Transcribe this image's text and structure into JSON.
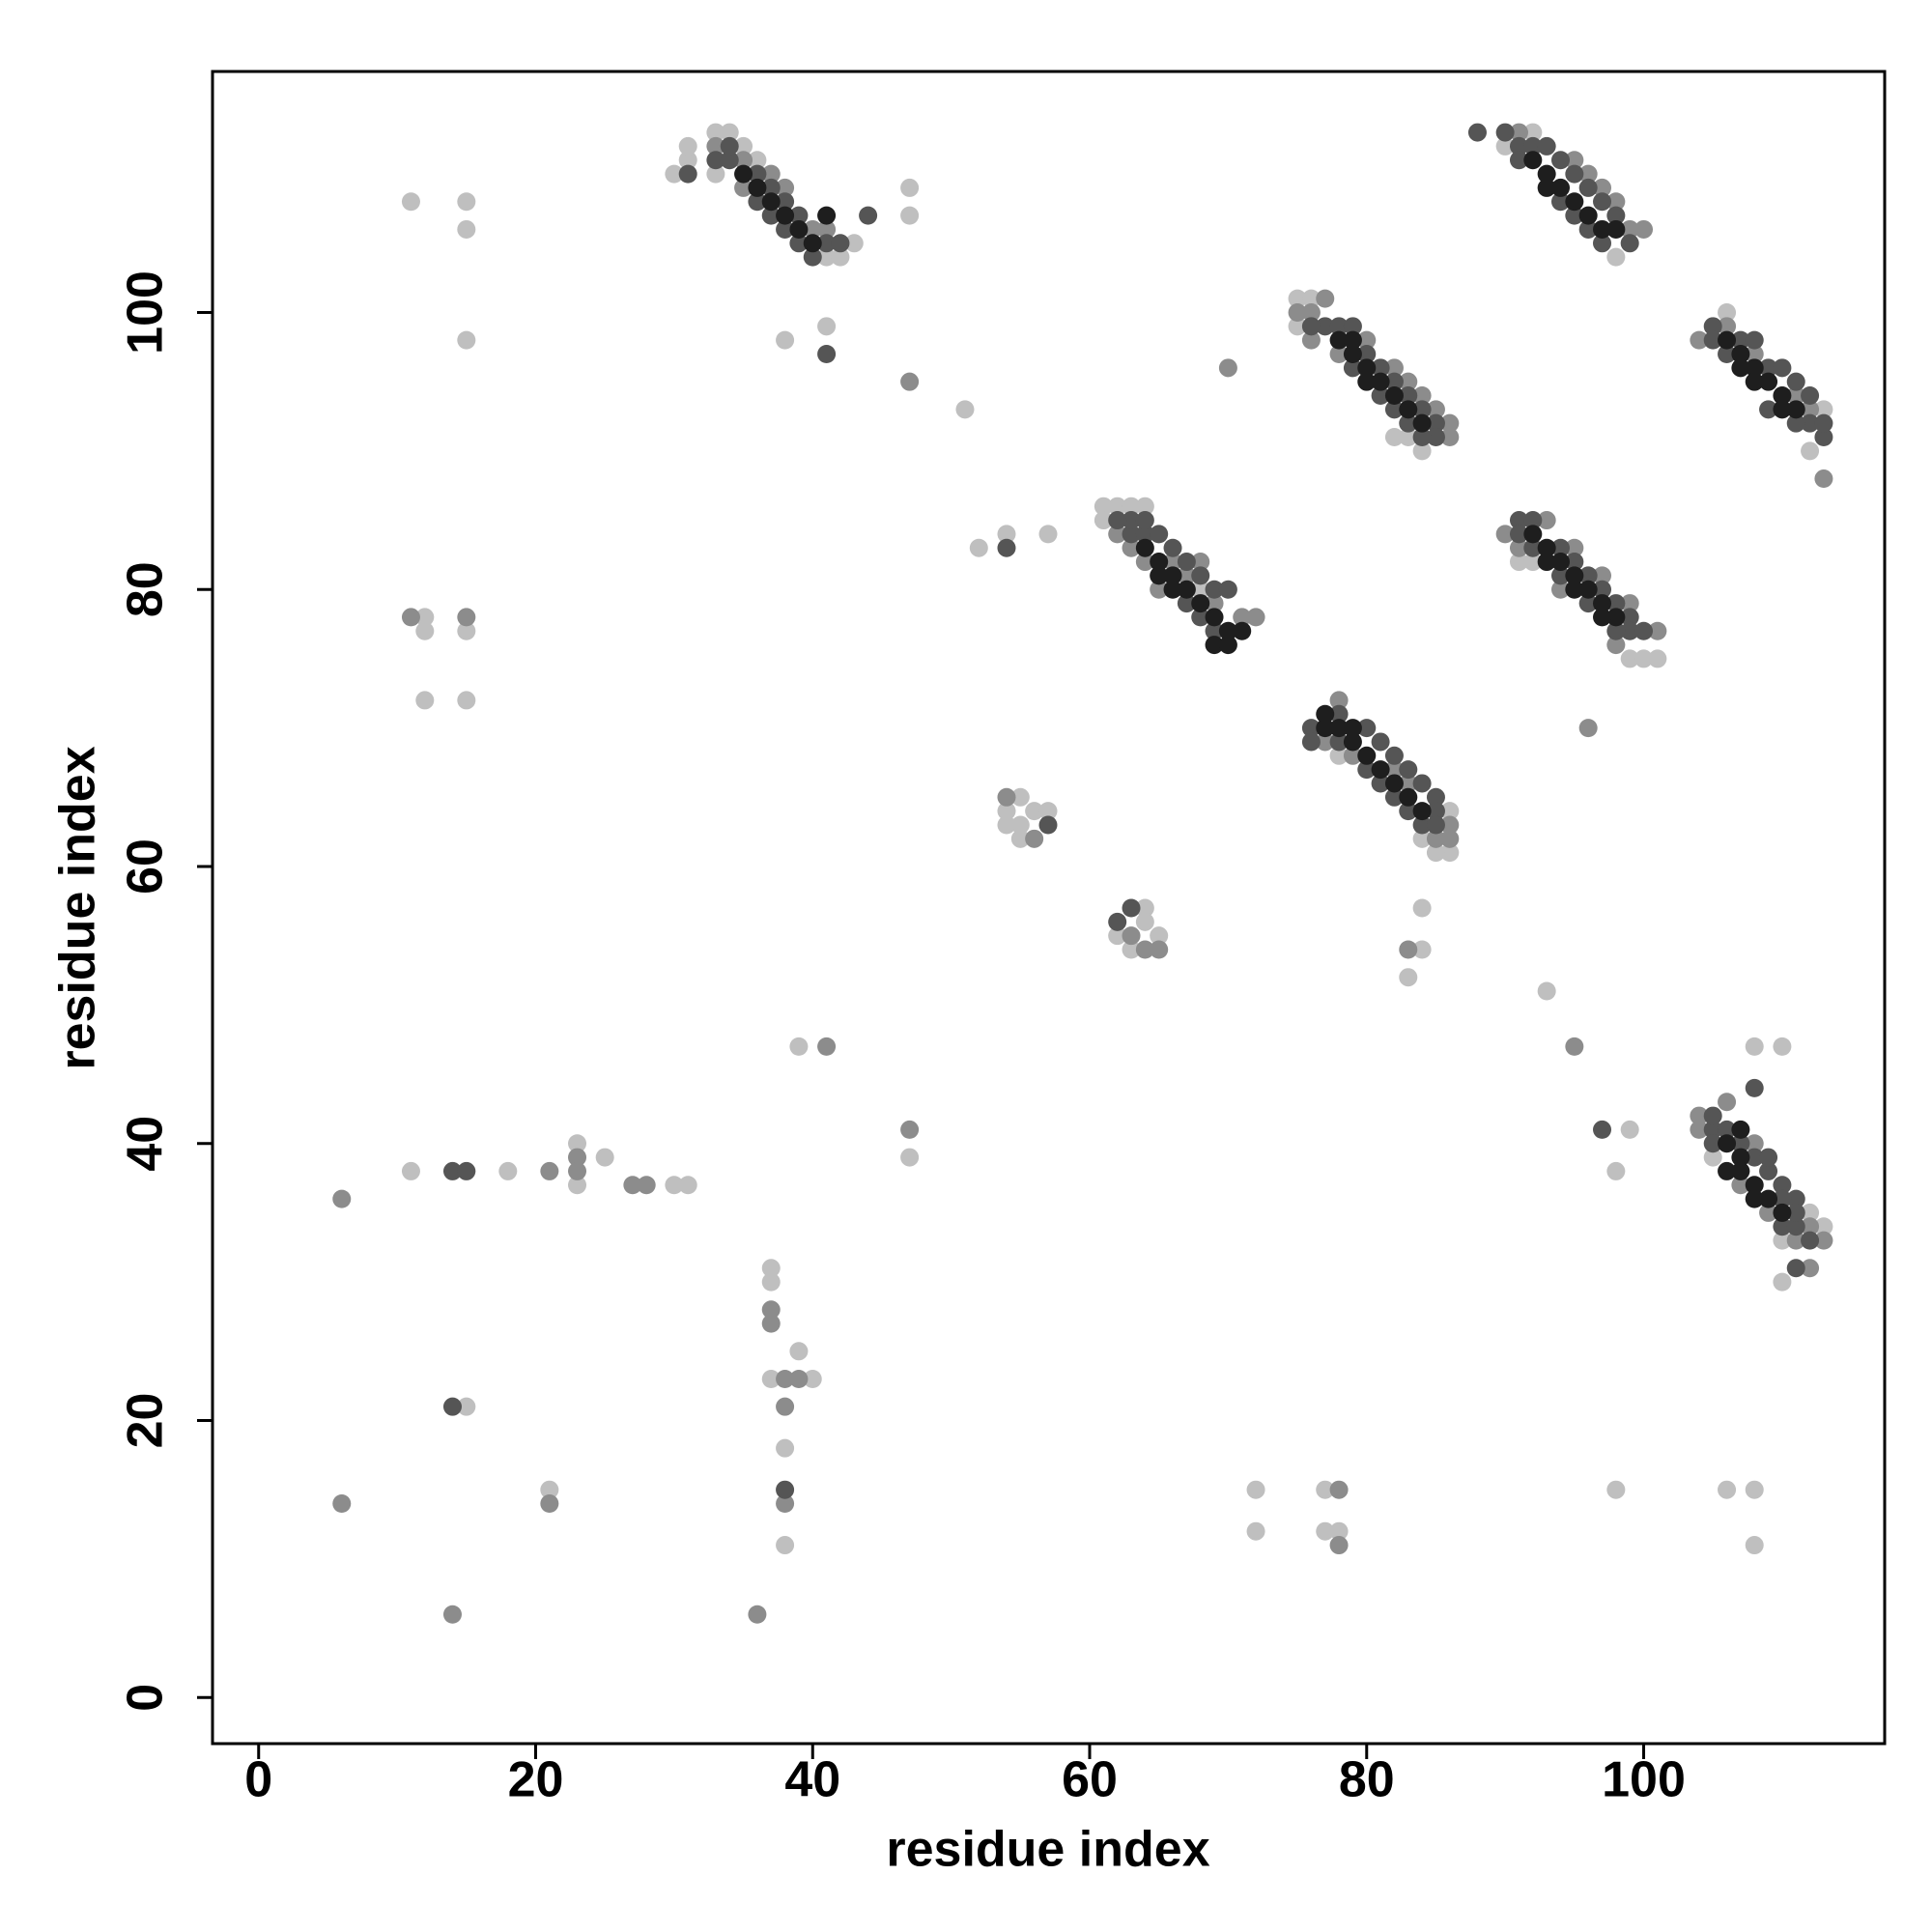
{
  "chart_data": {
    "type": "scatter",
    "xlabel": "residue index",
    "ylabel": "residue index",
    "xlim": [
      -3.33,
      117.4
    ],
    "ylim": [
      -3.33,
      117.4
    ],
    "xticks": [
      0,
      20,
      40,
      60,
      80,
      100
    ],
    "yticks": [
      0,
      20,
      40,
      60,
      80,
      100
    ],
    "grid": false,
    "series": [
      {
        "color": "#bfbfbf",
        "x": [
          30,
          31,
          31,
          33,
          34,
          35,
          36,
          41,
          42,
          43,
          47,
          47,
          41,
          38,
          33,
          90,
          92,
          98,
          75,
          75,
          76,
          82,
          84,
          83,
          106,
          112,
          113,
          61,
          62,
          63,
          64,
          61,
          57,
          54,
          52,
          68,
          91,
          99,
          100,
          101,
          92,
          86,
          86,
          85,
          84,
          78,
          108,
          110,
          112,
          113,
          110,
          110,
          105,
          11,
          15,
          15,
          15,
          12,
          12,
          15,
          12,
          15,
          11,
          18,
          23,
          23,
          25,
          30,
          31,
          15,
          21,
          37,
          37,
          37,
          40,
          39,
          38,
          38,
          39,
          47,
          51,
          55,
          54,
          54,
          55,
          55,
          56,
          57,
          62,
          63,
          64,
          64,
          65,
          84,
          84,
          83,
          93,
          99,
          98,
          72,
          72,
          77,
          77,
          78,
          98,
          106,
          108,
          108
        ],
        "values": [
          110,
          111,
          112,
          113,
          113,
          112,
          111,
          104,
          104,
          105,
          109,
          107,
          99,
          98,
          110,
          112,
          113,
          104,
          101,
          99,
          101,
          91,
          90,
          91,
          100,
          90,
          93,
          86,
          86,
          86,
          86,
          85,
          84,
          84,
          83,
          80,
          82,
          75,
          75,
          75,
          82,
          64,
          61,
          61,
          62,
          68,
          47,
          47,
          35,
          34,
          33,
          30,
          39,
          108,
          108,
          106,
          98,
          78,
          77,
          77,
          72,
          72,
          38,
          38,
          40,
          37,
          39,
          37,
          37,
          21,
          15,
          31,
          30,
          23,
          23,
          25,
          18,
          11,
          47,
          39,
          93,
          65,
          64,
          63,
          63,
          62,
          64,
          64,
          55,
          54,
          57,
          56,
          55,
          54,
          57,
          52,
          51,
          41,
          38,
          15,
          12,
          15,
          12,
          12,
          15,
          15,
          15,
          11
        ]
      },
      {
        "color": "#8c8c8c",
        "x": [
          33,
          35,
          37,
          38,
          40,
          41,
          35,
          91,
          95,
          97,
          98,
          99,
          100,
          96,
          70,
          75,
          76,
          77,
          80,
          82,
          83,
          84,
          85,
          86,
          86,
          78,
          76,
          104,
          106,
          108,
          112,
          113,
          111,
          62,
          63,
          64,
          66,
          68,
          69,
          72,
          71,
          65,
          67,
          90,
          91,
          93,
          95,
          97,
          99,
          101,
          96,
          98,
          94,
          78,
          79,
          83,
          85,
          86,
          86,
          82,
          77,
          104,
          104,
          106,
          108,
          112,
          113,
          111,
          112,
          109,
          107,
          11,
          15,
          6,
          21,
          23,
          23,
          27,
          28,
          6,
          21,
          14,
          36,
          37,
          37,
          38,
          39,
          38,
          38,
          41,
          47,
          47,
          54,
          56,
          63,
          64,
          65,
          83,
          95,
          78,
          78
        ],
        "values": [
          112,
          111,
          110,
          109,
          106,
          106,
          109,
          113,
          111,
          109,
          108,
          106,
          106,
          110,
          96,
          100,
          100,
          101,
          98,
          96,
          95,
          94,
          93,
          92,
          91,
          97,
          98,
          98,
          99,
          97,
          93,
          88,
          94,
          84,
          83,
          82,
          82,
          82,
          79,
          78,
          78,
          80,
          81,
          84,
          83,
          85,
          83,
          81,
          79,
          77,
          70,
          76,
          80,
          72,
          68,
          66,
          62,
          63,
          62,
          67,
          69,
          42,
          41,
          43,
          40,
          34,
          33,
          33,
          31,
          35,
          37,
          78,
          78,
          36,
          38,
          39,
          38,
          37,
          37,
          14,
          14,
          6,
          6,
          28,
          27,
          23,
          23,
          21,
          14,
          47,
          41,
          95,
          65,
          62,
          55,
          54,
          54,
          54,
          47,
          15,
          11
        ]
      },
      {
        "color": "#555555",
        "x": [
          33,
          34,
          34,
          36,
          37,
          38,
          39,
          36,
          37,
          38,
          39,
          40,
          41,
          42,
          44,
          41,
          31,
          91,
          91,
          92,
          93,
          94,
          95,
          96,
          97,
          98,
          94,
          95,
          96,
          97,
          99,
          88,
          90,
          77,
          78,
          79,
          80,
          81,
          82,
          83,
          84,
          85,
          85,
          79,
          81,
          82,
          83,
          84,
          76,
          105,
          105,
          106,
          107,
          108,
          109,
          110,
          111,
          112,
          112,
          111,
          113,
          113,
          109,
          63,
          63,
          64,
          65,
          66,
          67,
          68,
          69,
          70,
          67,
          68,
          69,
          62,
          64,
          54,
          91,
          92,
          91,
          92,
          94,
          95,
          96,
          97,
          98,
          99,
          99,
          100,
          94,
          96,
          98,
          76,
          76,
          78,
          80,
          81,
          82,
          83,
          84,
          85,
          85,
          78,
          80,
          81,
          82,
          83,
          84,
          85,
          105,
          105,
          106,
          105,
          107,
          108,
          109,
          109,
          110,
          111,
          110,
          111,
          112,
          111,
          108,
          110,
          111,
          14,
          15,
          14,
          38,
          57,
          62,
          63,
          97
        ],
        "values": [
          111,
          111,
          112,
          110,
          109,
          108,
          107,
          108,
          107,
          106,
          105,
          104,
          105,
          105,
          107,
          97,
          110,
          112,
          111,
          112,
          112,
          111,
          110,
          109,
          108,
          107,
          108,
          107,
          106,
          105,
          105,
          113,
          113,
          99,
          99,
          99,
          97,
          96,
          95,
          94,
          93,
          92,
          91,
          96,
          94,
          93,
          92,
          91,
          99,
          99,
          98,
          97,
          98,
          98,
          96,
          96,
          95,
          94,
          92,
          92,
          91,
          92,
          93,
          84,
          85,
          84,
          84,
          83,
          82,
          81,
          80,
          80,
          79,
          78,
          77,
          85,
          85,
          83,
          85,
          85,
          84,
          83,
          83,
          82,
          81,
          80,
          79,
          78,
          77,
          77,
          81,
          79,
          77,
          70,
          69,
          71,
          70,
          69,
          68,
          67,
          66,
          65,
          64,
          69,
          67,
          66,
          65,
          64,
          63,
          63,
          41,
          42,
          41,
          40,
          40,
          39,
          38,
          39,
          37,
          36,
          34,
          34,
          33,
          31,
          44,
          36,
          35,
          38,
          38,
          21,
          15,
          63,
          56,
          57,
          41
        ]
      },
      {
        "color": "#1e1e1e",
        "x": [
          35,
          36,
          37,
          38,
          39,
          40,
          41,
          92,
          93,
          94,
          95,
          96,
          97,
          98,
          93,
          78,
          79,
          80,
          81,
          82,
          83,
          84,
          79,
          80,
          106,
          107,
          108,
          108,
          109,
          110,
          111,
          107,
          110,
          64,
          65,
          66,
          67,
          68,
          69,
          70,
          69,
          70,
          71,
          65,
          66,
          93,
          94,
          95,
          96,
          97,
          98,
          92,
          93,
          95,
          97,
          77,
          78,
          79,
          80,
          81,
          82,
          83,
          84,
          77,
          79,
          106,
          107,
          107,
          106,
          108,
          109,
          110,
          107,
          108
        ],
        "values": [
          110,
          109,
          108,
          107,
          106,
          105,
          107,
          111,
          110,
          109,
          108,
          107,
          106,
          106,
          109,
          98,
          97,
          96,
          95,
          94,
          93,
          92,
          98,
          95,
          98,
          97,
          96,
          95,
          95,
          94,
          93,
          96,
          93,
          83,
          82,
          81,
          80,
          79,
          78,
          77,
          76,
          76,
          77,
          81,
          80,
          83,
          82,
          81,
          80,
          79,
          78,
          84,
          82,
          80,
          78,
          71,
          70,
          69,
          68,
          67,
          66,
          65,
          64,
          70,
          70,
          40,
          39,
          41,
          38,
          37,
          36,
          35,
          38,
          36
        ]
      }
    ]
  }
}
